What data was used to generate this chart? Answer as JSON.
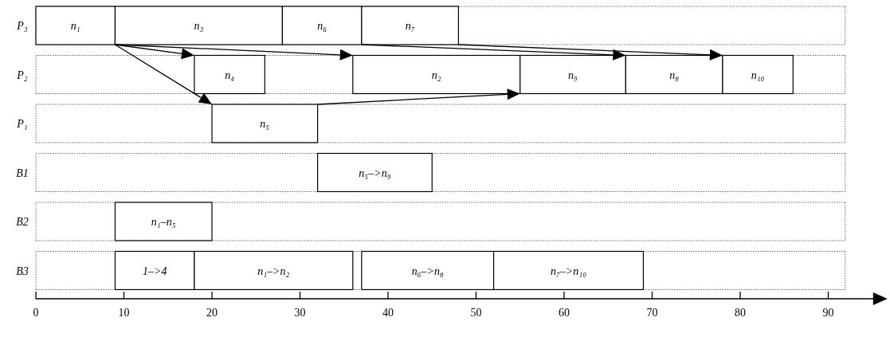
{
  "chart_data": {
    "type": "bar",
    "orientation": "horizontal",
    "categories": [
      "P₃",
      "P₂",
      "P₁",
      "B1",
      "B2",
      "B3"
    ],
    "xlim": [
      0,
      96
    ],
    "grid": "y",
    "xticks": [
      0,
      10,
      20,
      30,
      40,
      50,
      60,
      70,
      80,
      90
    ],
    "series": [
      {
        "color": "#ffffff",
        "base": [
          0,
          18,
          20,
          32,
          9,
          9
        ],
        "values": [
          9,
          8,
          12,
          13,
          11,
          9
        ],
        "value_labels": [
          "n₁",
          "n₄",
          "n₅",
          "n₅–>n₉",
          "n₁–n₅",
          "1–>4"
        ]
      },
      {
        "color": "#ffffff",
        "base": [
          9,
          36,
          null,
          null,
          null,
          18
        ],
        "values": [
          19,
          19,
          null,
          null,
          null,
          18
        ],
        "value_labels": [
          "n₃",
          "n₂",
          null,
          null,
          null,
          "n₁–>n₂"
        ]
      },
      {
        "color": "#ffffff",
        "base": [
          28,
          55,
          null,
          null,
          null,
          37
        ],
        "values": [
          9,
          12,
          null,
          null,
          null,
          15
        ],
        "value_labels": [
          "n₆",
          "n₉",
          null,
          null,
          null,
          "n₆–>n₈"
        ]
      },
      {
        "color": "#ffffff",
        "base": [
          37,
          67,
          null,
          null,
          null,
          52
        ],
        "values": [
          11,
          11,
          null,
          null,
          null,
          17
        ],
        "value_labels": [
          "n₇",
          "n₈",
          null,
          null,
          null,
          "n₇–>n₁₀"
        ]
      },
      {
        "color": "#ffffff",
        "base": [
          null,
          78,
          null,
          null,
          null,
          null
        ],
        "values": [
          null,
          8,
          null,
          null,
          null,
          null
        ],
        "value_labels": [
          null,
          "n₁₀",
          null,
          null,
          null,
          null
        ]
      }
    ]
  }
}
